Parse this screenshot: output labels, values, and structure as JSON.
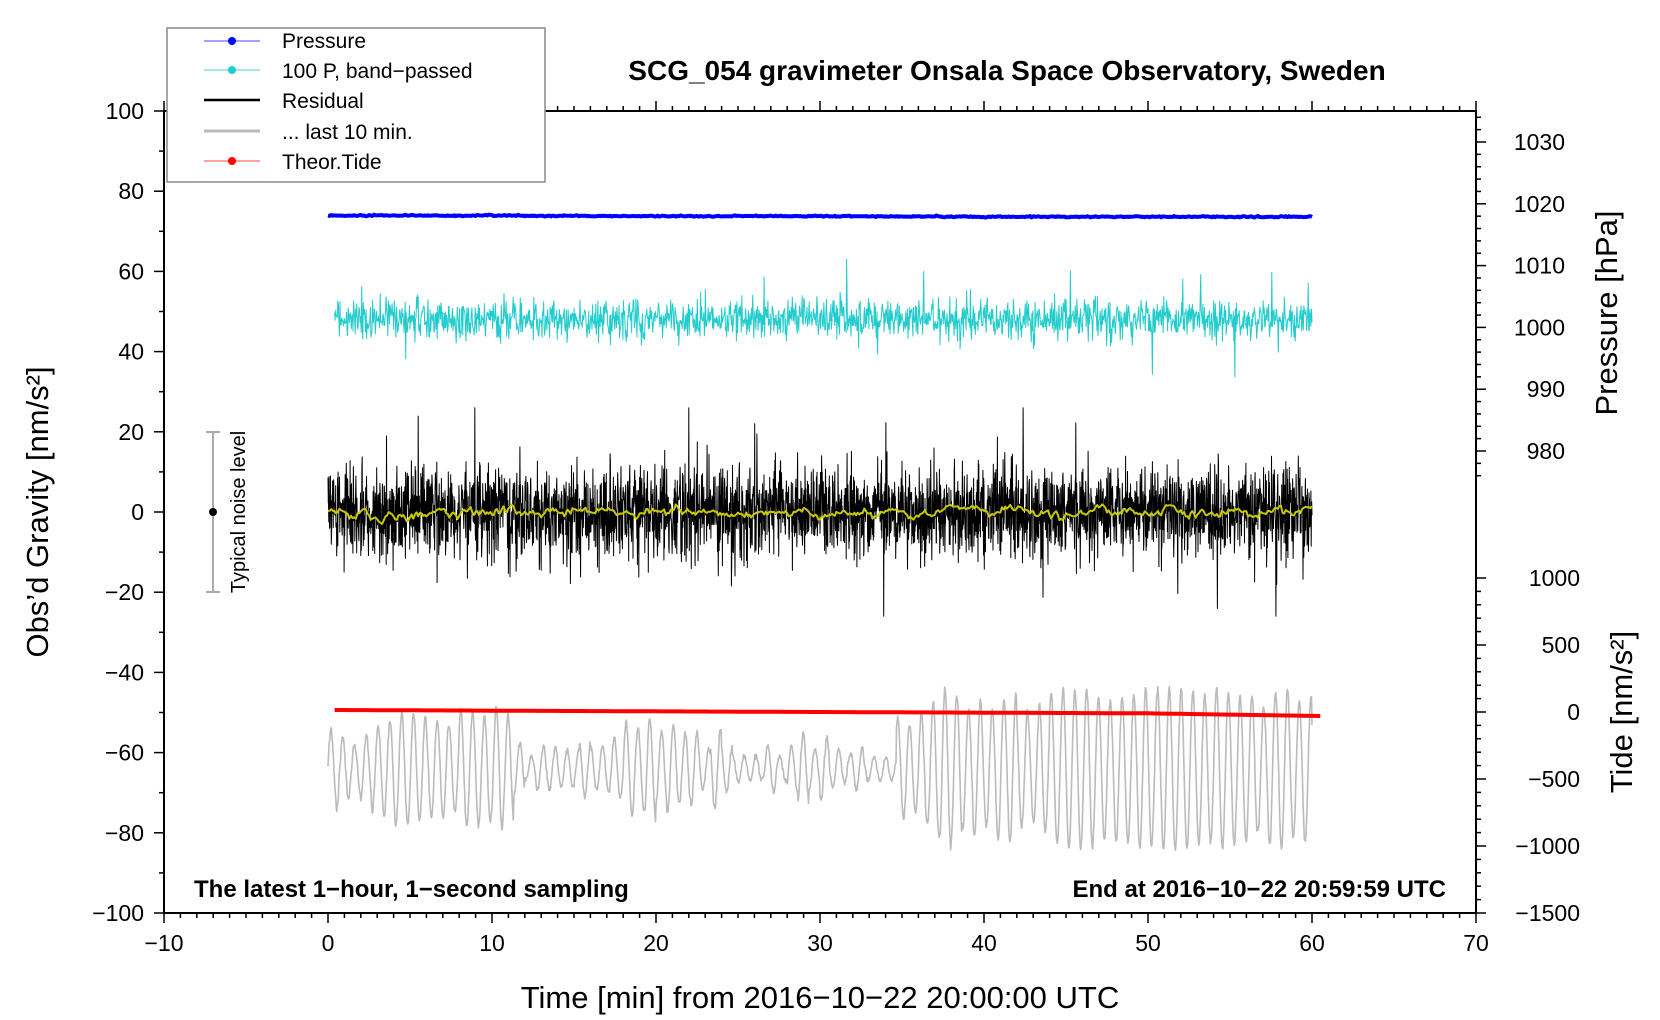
{
  "chart_data": {
    "type": "line",
    "title": "SCG_054 gravimeter Onsala Space Observatory, Sweden",
    "xlabel": "Time [min] from 2016−10−22 20:00:00 UTC",
    "ylabel": "Obs’d Gravity [nm/s²]",
    "ylabel_right_top": "Pressure [hPa]",
    "ylabel_right_bottom": "Tide [nm/s²]",
    "xlim": [
      -10,
      70
    ],
    "ylim": [
      -100,
      100
    ],
    "pressure_axis_ticks": [
      1030,
      1020,
      1010,
      1000,
      990,
      980
    ],
    "pressure_axis_tick_labels": [
      "1030",
      "1020",
      "1010",
      "1000",
      "990",
      "980"
    ],
    "tide_axis_ticks": [
      1000,
      500,
      0,
      -500,
      -1000,
      -1500
    ],
    "tide_axis_tick_labels": [
      "1000",
      "500",
      "0",
      "−500",
      "−1000",
      "−1500"
    ],
    "x_ticks": [
      -10,
      0,
      10,
      20,
      30,
      40,
      50,
      60,
      70
    ],
    "x_tick_labels": [
      "−10",
      "0",
      "10",
      "20",
      "30",
      "40",
      "50",
      "60",
      "70"
    ],
    "y_ticks": [
      100,
      80,
      60,
      40,
      20,
      0,
      -20,
      -40,
      -60,
      -80,
      -100
    ],
    "y_tick_labels": [
      "100",
      "80",
      "60",
      "40",
      "20",
      "0",
      "−20",
      "−40",
      "−60",
      "−80",
      "−100"
    ],
    "legend_position": "top-left",
    "legend": [
      "Pressure",
      "100 P, band−passed",
      "Residual",
      "... last 10 min.",
      "Theor.Tide"
    ],
    "series": [
      {
        "name": "Pressure",
        "unit": "hPa",
        "color": "#0000ff",
        "x": [
          0,
          10,
          20,
          30,
          40,
          50,
          60
        ],
        "values": [
          1018.1,
          1018.1,
          1018.0,
          1018.0,
          1017.9,
          1017.9,
          1017.9
        ]
      },
      {
        "name": "100 P, band-passed",
        "unit": "nm/s2",
        "color": "#22cccc",
        "offset": 48,
        "typical_amplitude": 4,
        "min": 31,
        "max": 63
      },
      {
        "name": "Residual",
        "unit": "nm/s2",
        "color": "#000000",
        "offset": 0,
        "typical_amplitude": 8,
        "min": -26,
        "max": 26
      },
      {
        "name": "Residual smoothed",
        "unit": "nm/s2",
        "color": "#c8c800",
        "offset": 0,
        "typical_amplitude": 1
      },
      {
        "name": "... last 10 min.",
        "unit": "nm/s2",
        "color": "#bbbbbb",
        "offset": -64,
        "typical_amplitude": 10,
        "min": -85,
        "max": -40
      },
      {
        "name": "Theor.Tide",
        "unit": "nm/s2",
        "color": "#ff0000",
        "x": [
          0.4,
          10,
          20,
          30,
          40,
          50,
          60.5
        ],
        "values": [
          15,
          10,
          5,
          0,
          -5,
          -10,
          -30
        ]
      }
    ],
    "annotations": {
      "left_note": "The latest 1−hour, 1−second sampling",
      "right_note": "End at 2016−10−22 20:59:59 UTC",
      "noise_label": "Typical noise level",
      "noise_range": [
        -20,
        20
      ]
    }
  }
}
